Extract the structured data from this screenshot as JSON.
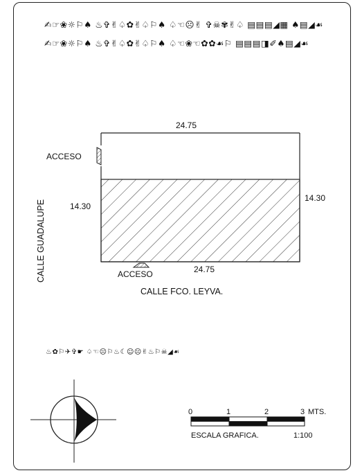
{
  "header": {
    "line1": "✍☞❀☼⚐♠ ♨✞✌♤✿✌♤⚐♠ ♤☜☹✌ ✞☠✾✌♤ ▤▤▤◢▦ ♠▤◢☙",
    "line2": "✍☞❀☼⚐♠ ♨✞✌♤✿✌♤⚐♠ ♤☜❀☜✿✿☙⚐ ▤▤▤◨✐♠▤◢☙"
  },
  "footer_note": "♨✿⚐✈✞☛ ♤☜☹⚐♨☾☺☹✌♨⚐☠◢☙",
  "plan": {
    "top_dimension": "24.75",
    "bottom_dimension": "24.75",
    "left_dimension": "14.30",
    "right_dimension": "14.30",
    "access_left_label": "ACCESO",
    "access_bottom_label": "ACCESO",
    "street_left": "CALLE GUADALUPE",
    "street_bottom": "CALLE FCO. LEYVA."
  },
  "scale_bar": {
    "ticks": [
      "0",
      "1",
      "2",
      "3"
    ],
    "unit": "MTS.",
    "label": "ESCALA GRAFICA.",
    "ratio": "1:100"
  }
}
